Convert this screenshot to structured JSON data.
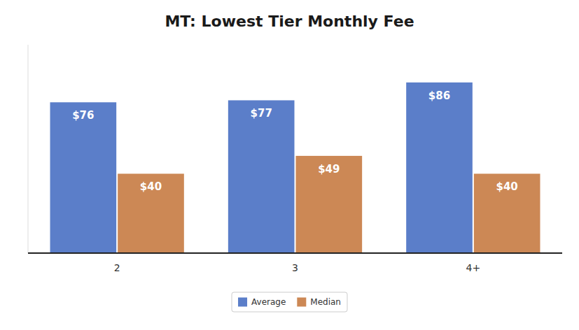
{
  "chart_data": {
    "type": "bar",
    "title": "MT: Lowest Tier Monthly Fee",
    "categories": [
      "2",
      "3",
      "4+"
    ],
    "series": [
      {
        "name": "Average",
        "color": "#5B7EC9",
        "values": [
          76,
          77,
          86
        ],
        "value_labels": [
          "$76",
          "$77",
          "$86"
        ]
      },
      {
        "name": "Median",
        "color": "#CC8855",
        "values": [
          40,
          49,
          40
        ],
        "value_labels": [
          "$40",
          "$49",
          "$40"
        ]
      }
    ],
    "ylim": [
      0,
      105
    ],
    "data_labels": true,
    "tick_labels": "x",
    "grid": false,
    "legend": "bottom"
  }
}
